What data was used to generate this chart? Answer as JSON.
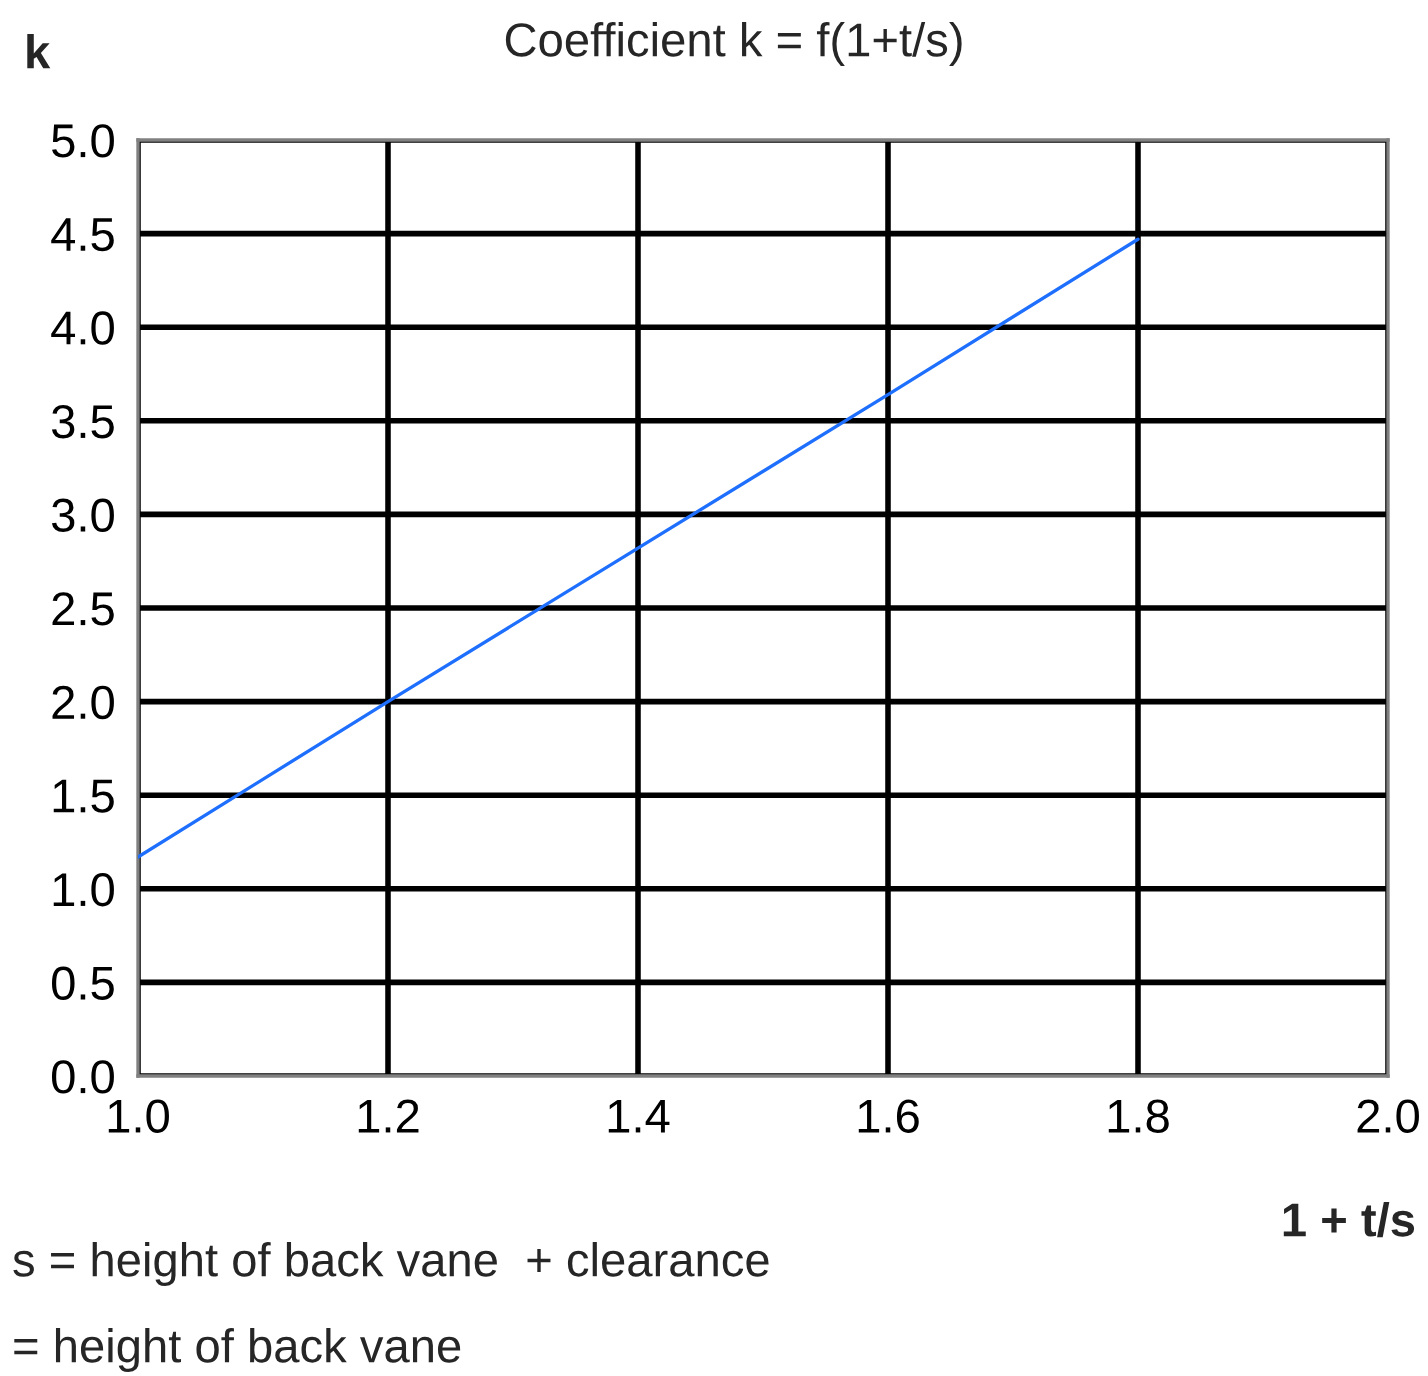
{
  "chart_data": {
    "type": "line",
    "title": "Coefficient k = f(1+t/s)",
    "xlabel": "1 + t/s",
    "ylabel": "k",
    "x": [
      1.0,
      1.2,
      1.4,
      1.6,
      1.8
    ],
    "series": [
      {
        "color": "#1f6fff",
        "values": [
          1.17,
          2.0,
          2.82,
          3.64,
          4.47
        ]
      }
    ],
    "xlim": [
      1.0,
      2.0
    ],
    "xticks": [
      {
        "value": 1.0,
        "label": "1.0"
      },
      {
        "value": 1.2,
        "label": "1.2"
      },
      {
        "value": 1.4,
        "label": "1.4"
      },
      {
        "value": 1.6,
        "label": "1.6"
      },
      {
        "value": 1.8,
        "label": "1.8"
      },
      {
        "value": 2.0,
        "label": "2.0"
      }
    ],
    "ylim": [
      0,
      5
    ],
    "yticks": [
      {
        "value": 0,
        "label": "0.0"
      },
      {
        "value": 0.5,
        "label": "0.5"
      },
      {
        "value": 1,
        "label": "1.0"
      },
      {
        "value": 1.5,
        "label": "1.5"
      },
      {
        "value": 2,
        "label": "2.0"
      },
      {
        "value": 2.5,
        "label": "2.5"
      },
      {
        "value": 3,
        "label": "3.0"
      },
      {
        "value": 3.5,
        "label": "3.5"
      },
      {
        "value": 4,
        "label": "4.0"
      },
      {
        "value": 4.5,
        "label": "4.5"
      },
      {
        "value": 5,
        "label": "5.0"
      }
    ],
    "grid": true,
    "line_style": "solid",
    "annotations": [
      "s = height of back vane  + clearance",
      "= height of back vane"
    ]
  }
}
